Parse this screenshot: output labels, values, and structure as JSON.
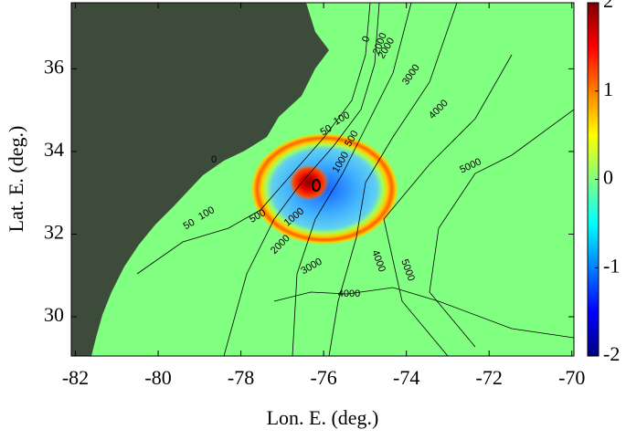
{
  "chart_data": {
    "type": "map",
    "xlabel": "Lon. E. (deg.)",
    "ylabel": "Lat. E. (deg.)",
    "xlim": [
      -82.1,
      -69.95
    ],
    "ylim": [
      29.05,
      37.6
    ],
    "xticks": [
      -82,
      -80,
      -78,
      -76,
      -74,
      -72,
      -70
    ],
    "yticks": [
      30,
      32,
      34,
      36
    ],
    "clim": [
      -2,
      2
    ],
    "cticks": [
      -2,
      -1,
      0,
      1,
      2
    ],
    "contour_labels": [
      "0",
      "50",
      "100",
      "500",
      "1000",
      "2000",
      "3000",
      "4000",
      "5000",
      "50",
      "100",
      "500",
      "1000",
      "2000",
      "3000",
      "4000",
      "5000",
      "4000",
      "0",
      "2000"
    ]
  }
}
